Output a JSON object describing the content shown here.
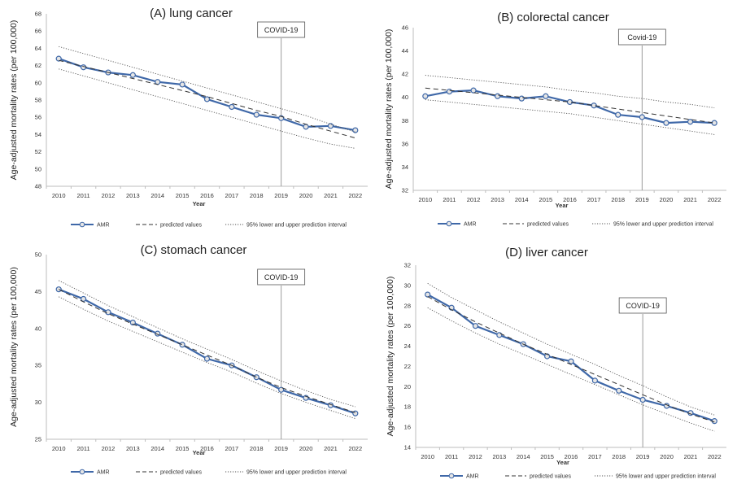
{
  "chart_data": [
    {
      "type": "line",
      "title": "(A) lung cancer",
      "xlabel": "Year",
      "ylabel": "Age-adjusted mortality rates (per 100,000)",
      "covid_label": "COVID-19",
      "categories": [
        "2010",
        "2011",
        "2012",
        "2013",
        "2014",
        "2015",
        "2016",
        "2017",
        "2018",
        "2019",
        "2020",
        "2021",
        "2022"
      ],
      "ylim": [
        48,
        68
      ],
      "yticks": [
        48,
        50,
        52,
        54,
        56,
        58,
        60,
        62,
        64,
        66,
        68
      ],
      "series": [
        {
          "name": "AMR",
          "style": "solid-markers",
          "values": [
            62.8,
            61.8,
            61.2,
            60.9,
            60.1,
            59.8,
            58.1,
            57.2,
            56.3,
            55.9,
            54.9,
            55.0,
            54.5
          ]
        },
        {
          "name": "predicted values",
          "style": "dashed",
          "values": [
            62.6,
            61.9,
            61.2,
            60.5,
            59.8,
            59.1,
            58.4,
            57.6,
            56.8,
            56.1,
            55.2,
            54.4,
            53.6
          ]
        },
        {
          "name": "95% lower and upper prediction interval",
          "style": "dotted-upper",
          "values": [
            64.2,
            63.4,
            62.6,
            61.8,
            61.0,
            60.2,
            59.4,
            58.6,
            57.8,
            57.0,
            56.2,
            55.2,
            54.3
          ]
        },
        {
          "name": "95% lower and upper prediction interval",
          "style": "dotted-lower",
          "values": [
            61.6,
            60.8,
            60.0,
            59.2,
            58.4,
            57.6,
            56.8,
            56.0,
            55.2,
            54.4,
            53.6,
            52.9,
            52.4
          ]
        }
      ],
      "legend": [
        "AMR",
        "predicted values",
        "95% lower and upper prediction interval"
      ]
    },
    {
      "type": "line",
      "title": "(B) colorectal cancer",
      "xlabel": "Year",
      "ylabel": "Age-adjusted mortality rates (per 100,000)",
      "covid_label": "Covid-19",
      "categories": [
        "2010",
        "2011",
        "2012",
        "2013",
        "2014",
        "2015",
        "2016",
        "2017",
        "2018",
        "2019",
        "2020",
        "2021",
        "2022"
      ],
      "ylim": [
        32,
        46
      ],
      "yticks": [
        32,
        34,
        36,
        38,
        40,
        42,
        44,
        46
      ],
      "series": [
        {
          "name": "AMR",
          "style": "solid-markers",
          "values": [
            40.1,
            40.5,
            40.6,
            40.1,
            39.9,
            40.1,
            39.6,
            39.3,
            38.5,
            38.3,
            37.8,
            37.9,
            37.8
          ]
        },
        {
          "name": "predicted values",
          "style": "dashed",
          "values": [
            40.8,
            40.6,
            40.4,
            40.2,
            40.0,
            39.8,
            39.6,
            39.3,
            39.0,
            38.7,
            38.4,
            38.1,
            37.8
          ]
        },
        {
          "name": "95% lower and upper prediction interval",
          "style": "dotted-upper",
          "values": [
            41.9,
            41.7,
            41.5,
            41.3,
            41.1,
            40.9,
            40.6,
            40.4,
            40.1,
            39.9,
            39.6,
            39.4,
            39.1
          ]
        },
        {
          "name": "95% lower and upper prediction interval",
          "style": "dotted-lower",
          "values": [
            39.8,
            39.6,
            39.4,
            39.2,
            39.0,
            38.8,
            38.6,
            38.3,
            38.0,
            37.7,
            37.4,
            37.1,
            36.8
          ]
        }
      ],
      "legend": [
        "AMR",
        "predicted values",
        "95% lower and upper prediction interval"
      ]
    },
    {
      "type": "line",
      "title": "(C) stomach cancer",
      "xlabel": "Year",
      "ylabel": "Age-adjusted mortality rates (per 100,000)",
      "covid_label": "COVID-19",
      "categories": [
        "2010",
        "2011",
        "2012",
        "2013",
        "2014",
        "2015",
        "2016",
        "2017",
        "2018",
        "2019",
        "2020",
        "2021",
        "2022"
      ],
      "ylim": [
        25,
        50
      ],
      "yticks": [
        25,
        30,
        35,
        40,
        45,
        50
      ],
      "series": [
        {
          "name": "AMR",
          "style": "solid-markers",
          "values": [
            45.3,
            44.0,
            42.2,
            40.8,
            39.3,
            37.8,
            35.9,
            35.0,
            33.4,
            31.7,
            30.6,
            29.6,
            28.5
          ]
        },
        {
          "name": "predicted values",
          "style": "dashed",
          "values": [
            45.3,
            43.6,
            42.0,
            40.6,
            39.2,
            37.8,
            36.4,
            35.0,
            33.4,
            32.0,
            30.8,
            29.7,
            28.6
          ]
        },
        {
          "name": "95% lower and upper prediction interval",
          "style": "dotted-upper",
          "values": [
            46.5,
            44.8,
            43.1,
            41.6,
            40.1,
            38.6,
            37.2,
            35.8,
            34.3,
            32.9,
            31.6,
            30.4,
            29.4
          ]
        },
        {
          "name": "95% lower and upper prediction interval",
          "style": "dotted-lower",
          "values": [
            44.3,
            42.6,
            41.0,
            39.6,
            38.2,
            36.8,
            35.4,
            34.1,
            32.6,
            31.2,
            30.0,
            28.9,
            27.8
          ]
        }
      ],
      "legend": [
        "AMR",
        "predicted values",
        "95% lower and upper prediction interval"
      ]
    },
    {
      "type": "line",
      "title": "(D) liver cancer",
      "xlabel": "Year",
      "ylabel": "Age-adjusted mortality rates (per 100,000)",
      "covid_label": "COVID-19",
      "categories": [
        "2010",
        "2011",
        "2012",
        "2013",
        "2014",
        "2015",
        "2016",
        "2017",
        "2018",
        "2019",
        "2020",
        "2021",
        "2022"
      ],
      "ylim": [
        14,
        32
      ],
      "yticks": [
        14,
        16,
        18,
        20,
        22,
        24,
        26,
        28,
        30,
        32
      ],
      "series": [
        {
          "name": "AMR",
          "style": "solid-markers",
          "values": [
            29.1,
            27.8,
            26.0,
            25.1,
            24.2,
            23.0,
            22.5,
            20.6,
            19.6,
            18.7,
            18.1,
            17.4,
            16.6
          ]
        },
        {
          "name": "predicted values",
          "style": "dashed",
          "values": [
            28.9,
            27.6,
            26.4,
            25.3,
            24.2,
            23.2,
            22.2,
            21.2,
            20.2,
            19.2,
            18.2,
            17.3,
            16.5
          ]
        },
        {
          "name": "95% lower and upper prediction interval",
          "style": "dotted-upper",
          "values": [
            30.2,
            28.8,
            27.6,
            26.4,
            25.3,
            24.2,
            23.2,
            22.2,
            21.1,
            20.1,
            19.0,
            18.0,
            17.2
          ]
        },
        {
          "name": "95% lower and upper prediction interval",
          "style": "dotted-lower",
          "values": [
            27.8,
            26.5,
            25.3,
            24.2,
            23.2,
            22.2,
            21.2,
            20.2,
            19.2,
            18.2,
            17.3,
            16.4,
            15.6
          ]
        }
      ],
      "legend": [
        "AMR",
        "predicted values",
        "95% lower and upper prediction interval"
      ]
    }
  ],
  "style": {
    "amr_color": "#3f68a8",
    "marker_fill": "#e6e6e6",
    "ref_color": "#444444",
    "gridless": true
  }
}
